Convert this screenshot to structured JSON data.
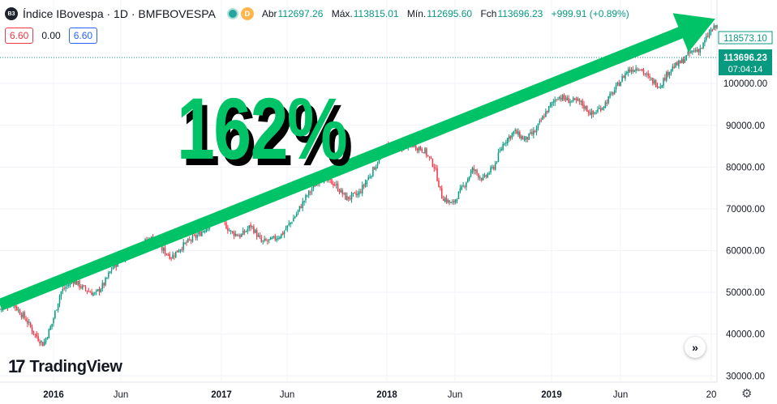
{
  "header": {
    "symbol_badge": "B3",
    "title": "Índice IBovespa · 1D · BMFBOVESPA",
    "status_icon": "market-open-dot",
    "delay_badge": "D",
    "ohlc": {
      "open_label": "Abr",
      "open": "112697.26",
      "high_label": "Máx.",
      "high": "113815.01",
      "low_label": "Mín.",
      "low": "112695.60",
      "close_label": "Fch",
      "close": "113696.23",
      "change": "+999.91 (+0.89%)"
    }
  },
  "indicators": {
    "left_value": "6.60",
    "mid_value": "0.00",
    "right_value": "6.60"
  },
  "watermark": {
    "text": "TradingView"
  },
  "annotation": {
    "text": "162%"
  },
  "price_labels": {
    "high_label": "118573.10",
    "current_price": "113696.23",
    "countdown": "07:04:14"
  },
  "colors": {
    "up": "#089981",
    "down": "#f23645",
    "arrow": "#00c266",
    "accent": "#2962ff"
  },
  "icons": {
    "goto": "double-chevron-right-icon",
    "settings": "gear-icon"
  },
  "chart_data": {
    "type": "candlestick",
    "yticks": [
      "30000.00",
      "40000.00",
      "50000.00",
      "60000.00",
      "70000.00",
      "80000.00",
      "90000.00",
      "100000.00"
    ],
    "ylim": [
      28500,
      120000
    ],
    "xticks": [
      "2016",
      "Jun",
      "2017",
      "Jun",
      "2018",
      "Jun",
      "2019",
      "Jun",
      "20"
    ],
    "xlim": [
      2015.85,
      2019.99
    ],
    "trend_arrow": {
      "from": [
        2015.85,
        47000
      ],
      "to": [
        2019.98,
        115500
      ]
    },
    "series_close": [
      [
        2015.85,
        46000
      ],
      [
        2015.92,
        47500
      ],
      [
        2016.0,
        43500
      ],
      [
        2016.05,
        40000
      ],
      [
        2016.1,
        37500
      ],
      [
        2016.15,
        42500
      ],
      [
        2016.2,
        50000
      ],
      [
        2016.27,
        53000
      ],
      [
        2016.33,
        51000
      ],
      [
        2016.4,
        49500
      ],
      [
        2016.45,
        52000
      ],
      [
        2016.5,
        56000
      ],
      [
        2016.58,
        59000
      ],
      [
        2016.65,
        61000
      ],
      [
        2016.72,
        63000
      ],
      [
        2016.78,
        60500
      ],
      [
        2016.84,
        58500
      ],
      [
        2016.9,
        61000
      ],
      [
        2017.0,
        64000
      ],
      [
        2017.08,
        67000
      ],
      [
        2017.12,
        68000
      ],
      [
        2017.18,
        64500
      ],
      [
        2017.24,
        63500
      ],
      [
        2017.3,
        66000
      ],
      [
        2017.36,
        62000
      ],
      [
        2017.42,
        62500
      ],
      [
        2017.48,
        64000
      ],
      [
        2017.55,
        68000
      ],
      [
        2017.62,
        73000
      ],
      [
        2017.7,
        77500
      ],
      [
        2017.78,
        76000
      ],
      [
        2017.85,
        72500
      ],
      [
        2017.92,
        73500
      ],
      [
        2018.0,
        79000
      ],
      [
        2018.08,
        85000
      ],
      [
        2018.15,
        84500
      ],
      [
        2018.22,
        85500
      ],
      [
        2018.3,
        84000
      ],
      [
        2018.36,
        80000
      ],
      [
        2018.4,
        73000
      ],
      [
        2018.46,
        71000
      ],
      [
        2018.52,
        75000
      ],
      [
        2018.58,
        79500
      ],
      [
        2018.64,
        77000
      ],
      [
        2018.7,
        80000
      ],
      [
        2018.76,
        86000
      ],
      [
        2018.82,
        88500
      ],
      [
        2018.88,
        86500
      ],
      [
        2018.94,
        88500
      ],
      [
        2019.0,
        93000
      ],
      [
        2019.07,
        97000
      ],
      [
        2019.13,
        96000
      ],
      [
        2019.2,
        95500
      ],
      [
        2019.27,
        92500
      ],
      [
        2019.34,
        95000
      ],
      [
        2019.4,
        98500
      ],
      [
        2019.47,
        103000
      ],
      [
        2019.54,
        104000
      ],
      [
        2019.6,
        101000
      ],
      [
        2019.66,
        99500
      ],
      [
        2019.72,
        103500
      ],
      [
        2019.78,
        105000
      ],
      [
        2019.84,
        107500
      ],
      [
        2019.9,
        108500
      ],
      [
        2019.95,
        112500
      ],
      [
        2019.99,
        113696
      ]
    ]
  }
}
